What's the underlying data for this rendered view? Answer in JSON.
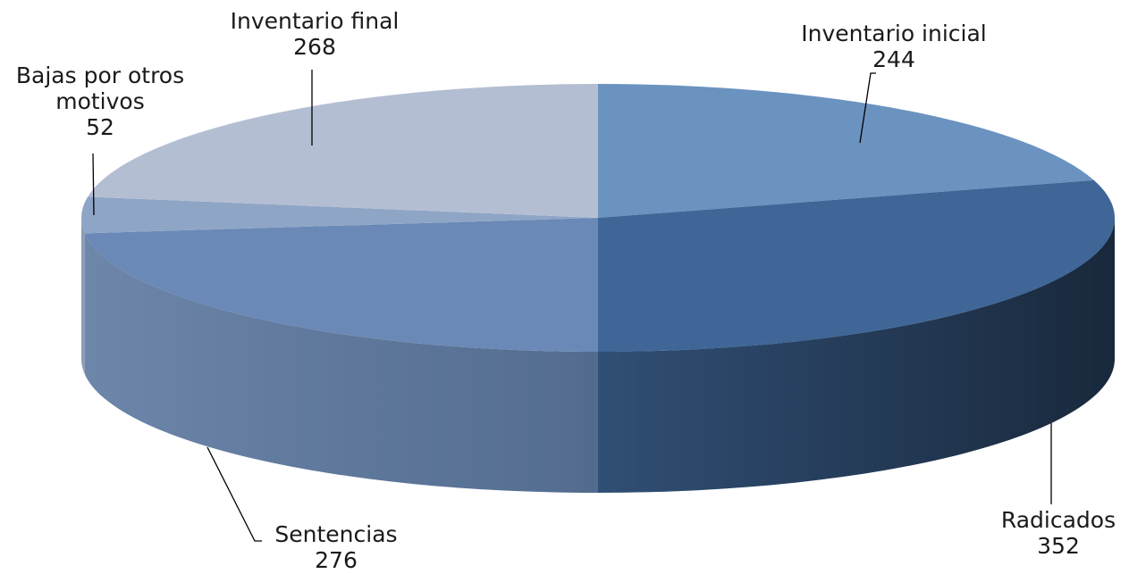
{
  "chart_data": {
    "type": "pie",
    "style": "3d",
    "categories": [
      "Inventario inicial",
      "Radicados",
      "Sentencias",
      "Bajas por otros motivos",
      "Inventario final"
    ],
    "values": [
      244,
      352,
      276,
      52,
      268
    ],
    "label_lines": [
      [
        "Inventario inicial"
      ],
      [
        "Radicados"
      ],
      [
        "Sentencias"
      ],
      [
        "Bajas por otros",
        "motivos"
      ],
      [
        "Inventario final"
      ]
    ],
    "value_labels": [
      "244",
      "352",
      "276",
      "52",
      "268"
    ],
    "colors": [
      "#6b93c0",
      "#3f6697",
      "#6a89b6",
      "#8ea5c6",
      "#b4bed2"
    ],
    "legend": "none",
    "start": "12 o'clock",
    "direction": "clockwise"
  }
}
